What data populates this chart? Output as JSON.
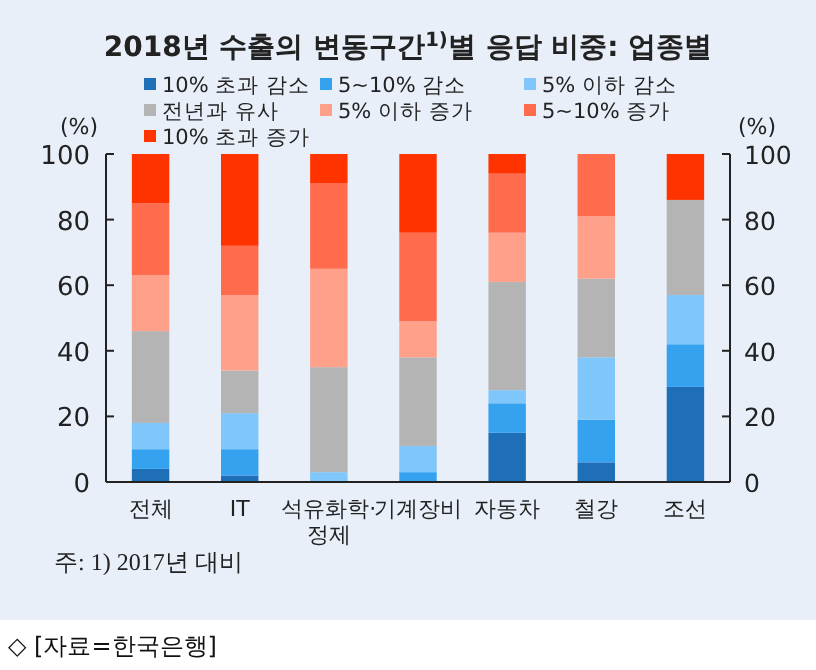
{
  "chart_data": {
    "type": "bar",
    "stacked": true,
    "title": "2018년 수출의 변동구간$^{1)}$별 응답 비중: 업종별",
    "categories": [
      "전체",
      "IT",
      "석유화학·\n정제",
      "기계장비",
      "자동차",
      "철강",
      "조선"
    ],
    "series": [
      {
        "name": "10% 초과 감소",
        "color": "#1f6fb8",
        "values": [
          4,
          2,
          0,
          0,
          15,
          6,
          29
        ]
      },
      {
        "name": "5~10% 감소",
        "color": "#35a2f0",
        "values": [
          6,
          8,
          0,
          3,
          9,
          13,
          13
        ]
      },
      {
        "name": "5% 이하 감소",
        "color": "#7fc6fb",
        "values": [
          8,
          11,
          3,
          8,
          4,
          19,
          15
        ]
      },
      {
        "name": "전년과 유사",
        "color": "#b4b4b4",
        "values": [
          28,
          13,
          32,
          27,
          33,
          24,
          29
        ]
      },
      {
        "name": "5% 이하 증가",
        "color": "#ffa08a",
        "values": [
          17,
          23,
          30,
          11,
          15,
          19,
          0
        ]
      },
      {
        "name": "5~10% 증가",
        "color": "#ff6b4d",
        "values": [
          22,
          15,
          26,
          27,
          18,
          19,
          0
        ]
      },
      {
        "name": "10% 초과 증가",
        "color": "#ff3300",
        "values": [
          15,
          28,
          9,
          24,
          6,
          0,
          14
        ]
      }
    ],
    "ylabel": "(%)",
    "y2label": "(%)",
    "ylim": [
      0,
      100
    ],
    "yticks": [
      0,
      20,
      40,
      60,
      80,
      100
    ],
    "y2lim": [
      0,
      100
    ],
    "y2ticks": [
      0,
      20,
      40,
      60,
      80,
      100
    ],
    "legend": "top",
    "annotations": [
      "주: 1) 2017년 대비",
      "◇ [자료=한국은행]"
    ]
  }
}
